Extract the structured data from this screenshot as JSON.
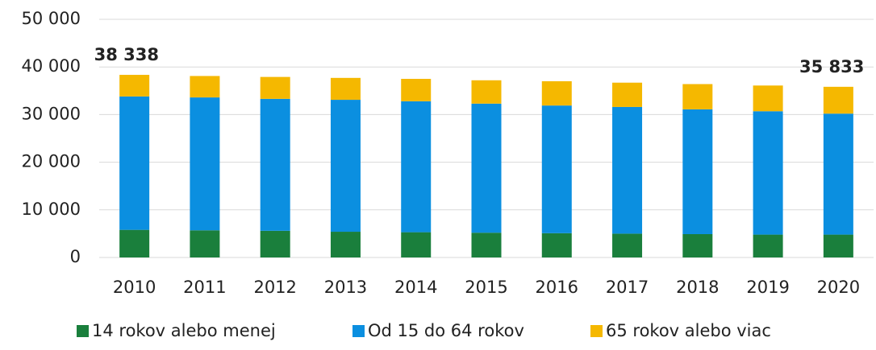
{
  "chart_data": {
    "type": "stacked_bar",
    "categories": [
      "2010",
      "2011",
      "2012",
      "2013",
      "2014",
      "2015",
      "2016",
      "2017",
      "2018",
      "2019",
      "2020"
    ],
    "series": [
      {
        "name": "14 rokov alebo menej",
        "color": "#1a7f3c",
        "values": [
          5800,
          5700,
          5600,
          5400,
          5300,
          5200,
          5100,
          5000,
          4900,
          4800,
          4800
        ]
      },
      {
        "name": "Od 15 do 64 rokov",
        "color": "#0b8fe0",
        "values": [
          28000,
          27900,
          27700,
          27700,
          27500,
          27100,
          26800,
          26600,
          26200,
          25900,
          25400
        ]
      },
      {
        "name": "65 rokov alebo viac",
        "color": "#f5b800",
        "values": [
          4538,
          4500,
          4600,
          4600,
          4700,
          4900,
          5100,
          5100,
          5300,
          5400,
          5633
        ]
      }
    ],
    "annotations": [
      {
        "x": "2010",
        "value": 38338,
        "label": "38 338"
      },
      {
        "x": "2020",
        "value": 35833,
        "label": "35 833"
      }
    ],
    "ylim": [
      0,
      50000
    ],
    "yticks": [
      0,
      {
        "value": 10000,
        "label": "10 000"
      },
      {
        "value": 20000,
        "label": "20 000"
      },
      {
        "value": 30000,
        "label": "30 000"
      },
      {
        "value": 40000,
        "label": "40 000"
      },
      {
        "value": 50000,
        "label": "50 000"
      }
    ],
    "grid": true,
    "legend": "bottom"
  }
}
